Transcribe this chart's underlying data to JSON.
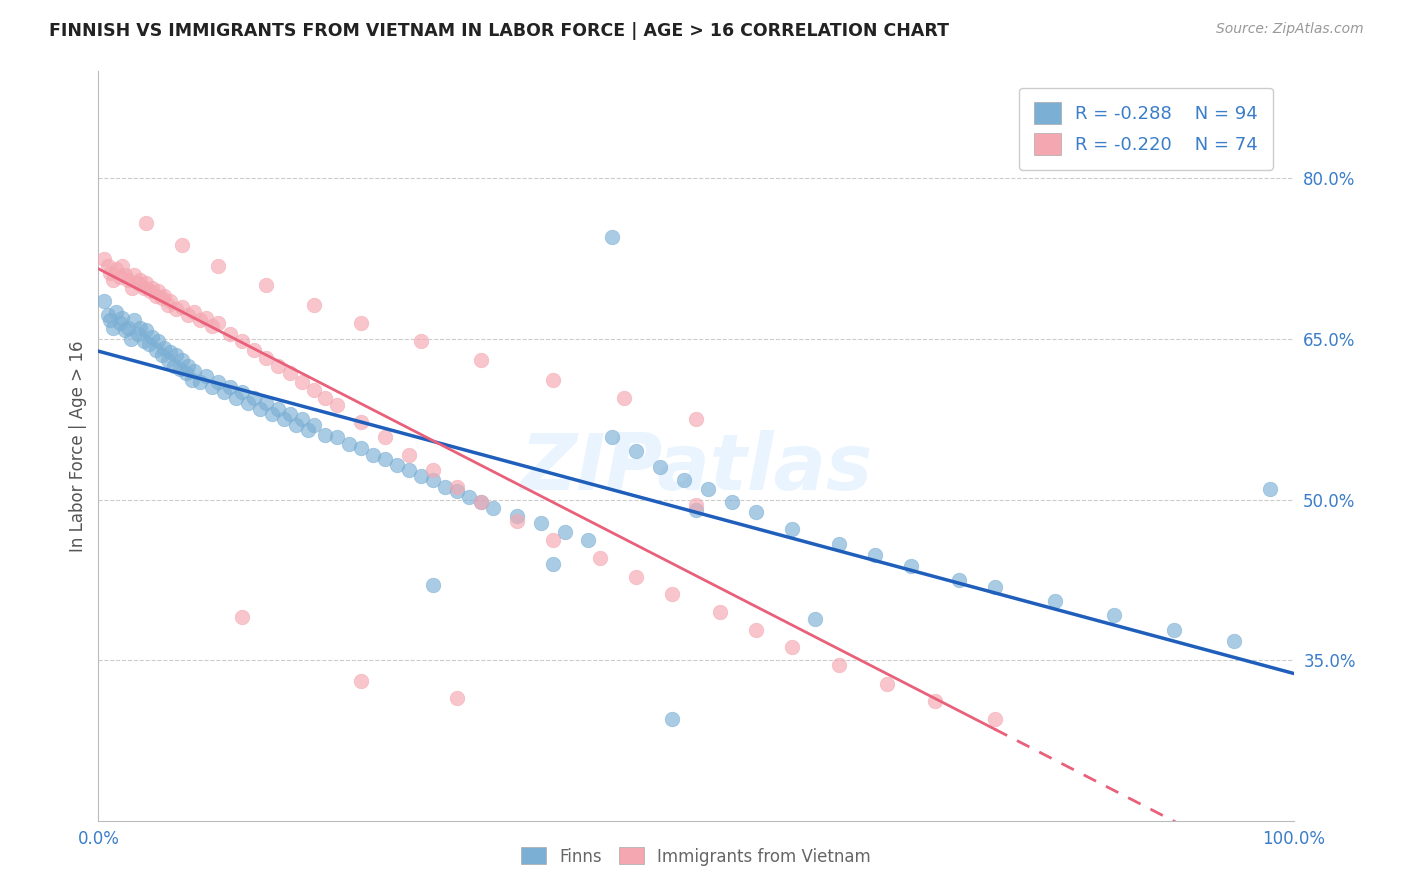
{
  "title": "FINNISH VS IMMIGRANTS FROM VIETNAM IN LABOR FORCE | AGE > 16 CORRELATION CHART",
  "source": "Source: ZipAtlas.com",
  "ylabel": "In Labor Force | Age > 16",
  "xlim": [
    0.0,
    1.0
  ],
  "ylim": [
    0.2,
    0.9
  ],
  "legend_r1": "R = -0.288",
  "legend_n1": "N = 94",
  "legend_r2": "R = -0.220",
  "legend_n2": "N = 74",
  "color_finns": "#7BAFD4",
  "color_vietnam": "#F4A7B0",
  "color_line_finns": "#1F5FBB",
  "color_line_vietnam": "#E8607A",
  "watermark": "ZIPatlas",
  "finns_x": [
    0.005,
    0.008,
    0.01,
    0.012,
    0.015,
    0.018,
    0.02,
    0.022,
    0.025,
    0.027,
    0.03,
    0.033,
    0.035,
    0.038,
    0.04,
    0.042,
    0.045,
    0.048,
    0.05,
    0.053,
    0.055,
    0.058,
    0.06,
    0.063,
    0.065,
    0.068,
    0.07,
    0.073,
    0.075,
    0.078,
    0.08,
    0.085,
    0.09,
    0.095,
    0.1,
    0.105,
    0.11,
    0.115,
    0.12,
    0.125,
    0.13,
    0.135,
    0.14,
    0.145,
    0.15,
    0.155,
    0.16,
    0.165,
    0.17,
    0.175,
    0.18,
    0.19,
    0.2,
    0.21,
    0.22,
    0.23,
    0.24,
    0.25,
    0.26,
    0.27,
    0.28,
    0.29,
    0.3,
    0.31,
    0.32,
    0.33,
    0.35,
    0.37,
    0.39,
    0.41,
    0.43,
    0.45,
    0.47,
    0.49,
    0.51,
    0.53,
    0.55,
    0.58,
    0.62,
    0.65,
    0.68,
    0.72,
    0.75,
    0.8,
    0.85,
    0.9,
    0.95,
    0.43,
    0.5,
    0.6,
    0.38,
    0.28,
    0.48,
    0.98
  ],
  "finns_y": [
    0.685,
    0.672,
    0.668,
    0.66,
    0.675,
    0.665,
    0.67,
    0.658,
    0.66,
    0.65,
    0.668,
    0.655,
    0.66,
    0.648,
    0.658,
    0.645,
    0.652,
    0.64,
    0.648,
    0.635,
    0.642,
    0.63,
    0.638,
    0.625,
    0.635,
    0.622,
    0.63,
    0.618,
    0.625,
    0.612,
    0.62,
    0.61,
    0.615,
    0.605,
    0.61,
    0.6,
    0.605,
    0.595,
    0.6,
    0.59,
    0.595,
    0.585,
    0.59,
    0.58,
    0.585,
    0.575,
    0.58,
    0.57,
    0.575,
    0.565,
    0.57,
    0.56,
    0.558,
    0.552,
    0.548,
    0.542,
    0.538,
    0.532,
    0.528,
    0.522,
    0.518,
    0.512,
    0.508,
    0.502,
    0.498,
    0.492,
    0.485,
    0.478,
    0.47,
    0.462,
    0.558,
    0.545,
    0.53,
    0.518,
    0.51,
    0.498,
    0.488,
    0.472,
    0.458,
    0.448,
    0.438,
    0.425,
    0.418,
    0.405,
    0.392,
    0.378,
    0.368,
    0.745,
    0.49,
    0.388,
    0.44,
    0.42,
    0.295,
    0.51
  ],
  "viet_x": [
    0.005,
    0.008,
    0.01,
    0.012,
    0.015,
    0.018,
    0.02,
    0.022,
    0.025,
    0.028,
    0.03,
    0.033,
    0.035,
    0.038,
    0.04,
    0.043,
    0.045,
    0.048,
    0.05,
    0.053,
    0.055,
    0.058,
    0.06,
    0.065,
    0.07,
    0.075,
    0.08,
    0.085,
    0.09,
    0.095,
    0.1,
    0.11,
    0.12,
    0.13,
    0.14,
    0.15,
    0.16,
    0.17,
    0.18,
    0.19,
    0.2,
    0.22,
    0.24,
    0.26,
    0.28,
    0.3,
    0.32,
    0.35,
    0.38,
    0.42,
    0.45,
    0.48,
    0.52,
    0.55,
    0.58,
    0.62,
    0.66,
    0.7,
    0.75,
    0.04,
    0.07,
    0.1,
    0.14,
    0.18,
    0.22,
    0.27,
    0.32,
    0.38,
    0.44,
    0.5,
    0.12,
    0.22,
    0.3,
    0.5
  ],
  "viet_y": [
    0.725,
    0.718,
    0.712,
    0.705,
    0.715,
    0.708,
    0.718,
    0.71,
    0.705,
    0.698,
    0.71,
    0.702,
    0.705,
    0.698,
    0.702,
    0.695,
    0.698,
    0.69,
    0.695,
    0.688,
    0.69,
    0.682,
    0.685,
    0.678,
    0.68,
    0.672,
    0.675,
    0.668,
    0.67,
    0.662,
    0.665,
    0.655,
    0.648,
    0.64,
    0.632,
    0.625,
    0.618,
    0.61,
    0.602,
    0.595,
    0.588,
    0.572,
    0.558,
    0.542,
    0.528,
    0.512,
    0.498,
    0.48,
    0.462,
    0.445,
    0.428,
    0.412,
    0.395,
    0.378,
    0.362,
    0.345,
    0.328,
    0.312,
    0.295,
    0.758,
    0.738,
    0.718,
    0.7,
    0.682,
    0.665,
    0.648,
    0.63,
    0.612,
    0.595,
    0.575,
    0.39,
    0.33,
    0.315,
    0.495
  ]
}
